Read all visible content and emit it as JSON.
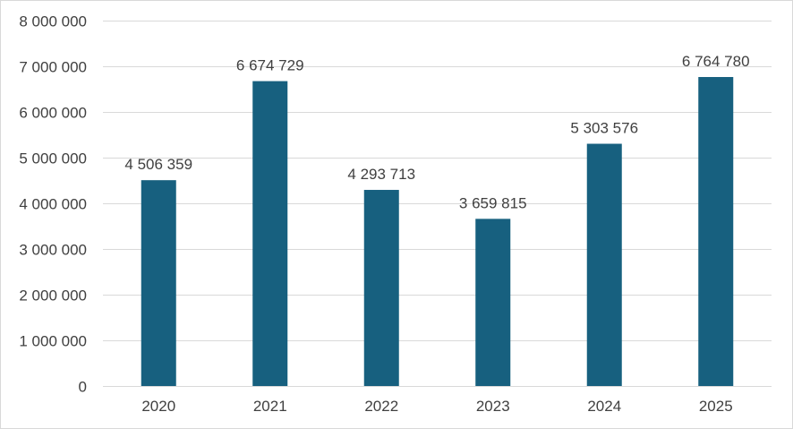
{
  "chart_data": {
    "type": "bar",
    "categories": [
      "2020",
      "2021",
      "2022",
      "2023",
      "2024",
      "2025"
    ],
    "values": [
      4506359,
      6674729,
      4293713,
      3659815,
      5303576,
      6764780
    ],
    "value_labels": [
      "4 506 359",
      "6 674 729",
      "4 293 713",
      "3 659 815",
      "5 303 576",
      "6 764 780"
    ],
    "y_ticks": [
      0,
      1000000,
      2000000,
      3000000,
      4000000,
      5000000,
      6000000,
      7000000,
      8000000
    ],
    "y_tick_labels": [
      "0",
      "1 000 000",
      "2 000 000",
      "3 000 000",
      "4 000 000",
      "5 000 000",
      "6 000 000",
      "7 000 000",
      "8 000 000"
    ],
    "ylim": [
      0,
      8000000
    ],
    "title": "",
    "xlabel": "",
    "ylabel": "",
    "grid": true,
    "legend": "none",
    "colors": {
      "bar": "#17607f",
      "grid": "#d9d9d9",
      "text": "#404040"
    }
  }
}
